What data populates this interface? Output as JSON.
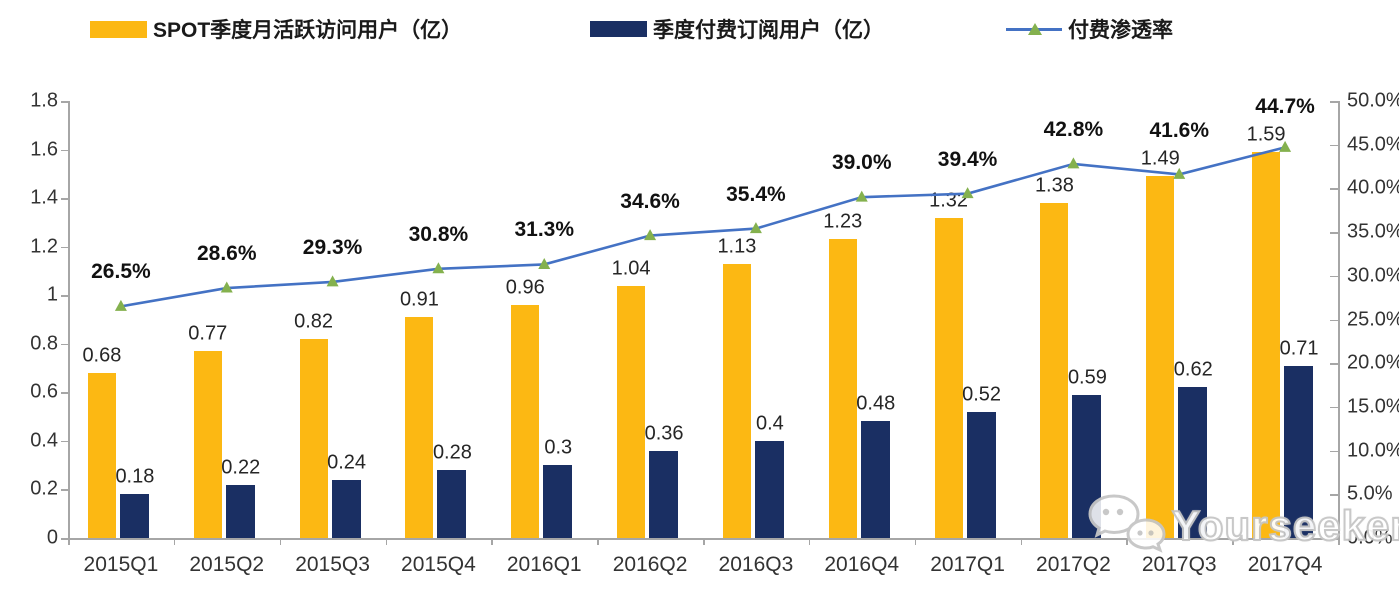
{
  "watermark": {
    "text": "Yourseeker",
    "icon": "wechat-bubbles-icon"
  },
  "chart_data": {
    "type": "bar",
    "combo": "grouped bars (left axis) + line with triangle markers (right axis)",
    "title": "",
    "xlabel": "",
    "ylabel_left": "",
    "ylabel_right": "",
    "grid": false,
    "legend_position": "top",
    "categories": [
      "2015Q1",
      "2015Q2",
      "2015Q3",
      "2015Q4",
      "2016Q1",
      "2016Q2",
      "2016Q3",
      "2016Q4",
      "2017Q1",
      "2017Q2",
      "2017Q3",
      "2017Q4"
    ],
    "series": [
      {
        "name": "SPOT季度月活跃访问用户（亿）",
        "type": "bar",
        "axis": "left",
        "color": "#FCB813",
        "values": [
          0.68,
          0.77,
          0.82,
          0.91,
          0.96,
          1.04,
          1.13,
          1.23,
          1.32,
          1.38,
          1.49,
          1.59
        ],
        "labels": [
          "0.68",
          "0.77",
          "0.82",
          "0.91",
          "0.96",
          "1.04",
          "1.13",
          "1.23",
          "1.32",
          "1.38",
          "1.49",
          "1.59"
        ]
      },
      {
        "name": "季度付费订阅用户（亿）",
        "type": "bar",
        "axis": "left",
        "color": "#1A2F63",
        "values": [
          0.18,
          0.22,
          0.24,
          0.28,
          0.3,
          0.36,
          0.4,
          0.48,
          0.52,
          0.59,
          0.62,
          0.71
        ],
        "labels": [
          "0.18",
          "0.22",
          "0.24",
          "0.28",
          "0.3",
          "0.36",
          "0.4",
          "0.48",
          "0.52",
          "0.59",
          "0.62",
          "0.71"
        ]
      },
      {
        "name": "付费渗透率",
        "type": "line",
        "axis": "right",
        "color": "#4472C4",
        "marker": "triangle",
        "marker_color": "#84B14E",
        "values": [
          26.5,
          28.6,
          29.3,
          30.8,
          31.3,
          34.6,
          35.4,
          39.0,
          39.4,
          42.8,
          41.6,
          44.7
        ],
        "labels": [
          "26.5%",
          "28.6%",
          "29.3%",
          "30.8%",
          "31.3%",
          "34.6%",
          "35.4%",
          "39.0%",
          "39.4%",
          "42.8%",
          "41.6%",
          "44.7%"
        ]
      }
    ],
    "left_axis": {
      "min": 0,
      "max": 1.8,
      "tick_labels": [
        "1.8",
        "1.6",
        "1.4",
        "1.2",
        "1",
        "0.8",
        "0.6",
        "0.4",
        "0.2",
        "0"
      ]
    },
    "right_axis": {
      "min": 0,
      "max": 50,
      "tick_labels": [
        "50.0%",
        "45.0%",
        "40.0%",
        "35.0%",
        "30.0%",
        "25.0%",
        "20.0%",
        "15.0%",
        "10.0%",
        "5.0%",
        "0.0%"
      ]
    }
  }
}
